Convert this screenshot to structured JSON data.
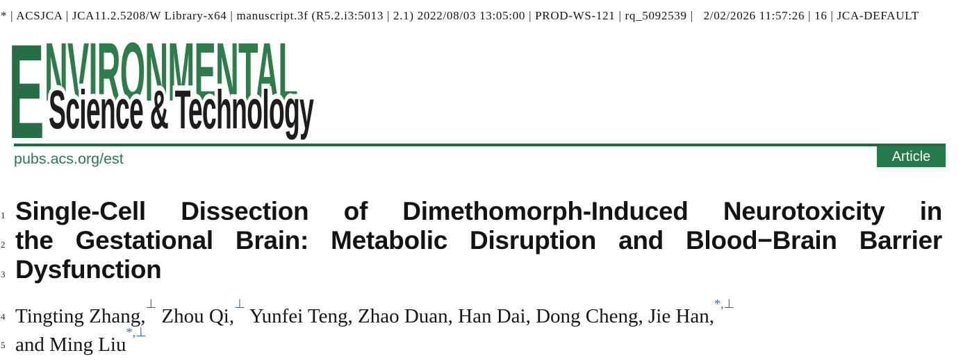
{
  "meta_line": "* | ACSJCA | JCA11.2.5208/W Library-x64 | manuscript.3f (R5.2.i3:5013 | 2.1) 2022/08/03 13:05:00 | PROD-WS-121 | rq_5092539 |   2/02/2026 11:57:26 | 16 | JCA-DEFAULT",
  "journal": {
    "logo_word_initial": "E",
    "logo_word_rest": "NVIRONMENTAL",
    "logo_line2": "Science & Technology",
    "site_url": "pubs.acs.org/est",
    "badge_label": "Article",
    "colors": {
      "logo_green": "#2e7b4c",
      "logo_initial_green": "#276e47",
      "logo_black": "#1d1d1b",
      "rule_green": "#1d6b45",
      "link_teal": "#26795c",
      "badge_green": "#26794b",
      "superscript_blue": "#3565c5"
    }
  },
  "line_numbers": [
    "1",
    "2",
    "3",
    "4",
    "5"
  ],
  "article": {
    "title_line1": "Single-Cell Dissection of Dimethomorph-Induced Neurotoxicity in",
    "title_line2": "the Gestational Brain: Metabolic Disruption and Blood−Brain Barrier",
    "title_line3": "Dysfunction",
    "authors_line1": [
      {
        "text": "Tingting Zhang,",
        "sup": "⊥"
      },
      {
        "text": " Zhou Qi,",
        "sup": "⊥"
      },
      {
        "text": " Yunfei Teng, Zhao Duan, Han Dai, Dong Cheng, Jie Han,",
        "sup": "*,⊥"
      }
    ],
    "authors_line2": [
      {
        "text": "and Ming Liu",
        "sup": "*,⊥"
      }
    ]
  }
}
